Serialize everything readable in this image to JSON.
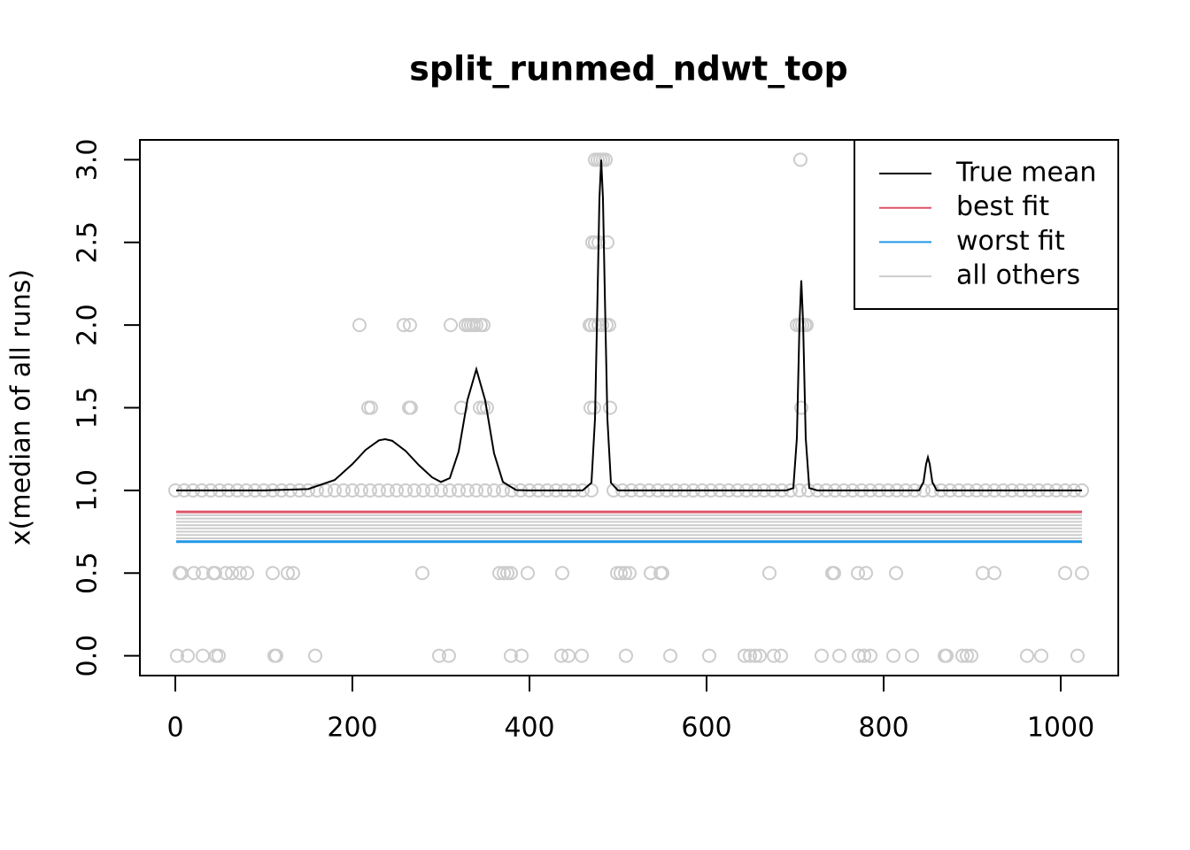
{
  "chart_data": {
    "type": "line",
    "title": "split_runmed_ndwt_top",
    "ylabel": "x(median of all runs)",
    "xlim": [
      -40,
      1065
    ],
    "ylim": [
      -0.12,
      3.12
    ],
    "xticks": [
      0,
      200,
      400,
      600,
      800,
      1000
    ],
    "yticks": [
      {
        "value": 0,
        "label": "0.0"
      },
      0.5,
      {
        "value": 1,
        "label": "1.0"
      },
      1.5,
      {
        "value": 2,
        "label": "2.0"
      },
      2.5,
      {
        "value": 3,
        "label": "3.0"
      }
    ],
    "legend": "topright",
    "points": {
      "color": "#cccccc",
      "groups": [
        {
          "y": 1,
          "x": [
            0,
            10,
            20,
            30,
            40,
            50,
            60,
            70,
            80,
            90,
            100,
            110,
            120,
            130,
            140,
            150,
            160,
            170,
            180,
            190,
            200,
            210,
            220,
            230,
            240,
            250,
            260,
            270,
            280,
            290,
            300,
            310,
            320,
            330,
            340,
            350,
            360,
            370,
            380,
            390,
            400,
            410,
            420,
            430,
            440,
            450,
            460,
            470,
            495,
            505,
            515,
            525,
            535,
            545,
            555,
            565,
            575,
            585,
            595,
            605,
            615,
            625,
            635,
            645,
            655,
            665,
            675,
            685,
            695,
            705,
            715,
            725,
            735,
            745,
            755,
            765,
            775,
            785,
            795,
            805,
            815,
            825,
            835,
            845,
            855,
            865,
            875,
            885,
            895,
            905,
            915,
            925,
            935,
            945,
            955,
            965,
            975,
            985,
            995,
            1005,
            1015,
            1024
          ]
        },
        {
          "y": 2,
          "x": [
            208,
            258,
            265,
            311,
            328,
            331,
            334,
            337,
            340,
            345,
            348,
            468,
            470,
            474,
            478,
            482,
            487,
            490,
            702,
            705,
            708,
            711,
            713
          ]
        },
        {
          "y": 1.5,
          "x": [
            218,
            221,
            264,
            266,
            323,
            344,
            348,
            352,
            469,
            473,
            491,
            707
          ]
        },
        {
          "y": 2.5,
          "x": [
            471,
            474,
            478,
            488
          ]
        },
        {
          "y": 3,
          "x": [
            474,
            477,
            480,
            483,
            486,
            706
          ]
        },
        {
          "y": 0.5,
          "x": [
            5,
            7,
            21,
            31,
            43,
            45,
            57,
            64,
            73,
            81,
            110,
            127,
            133,
            279,
            366,
            371,
            375,
            379,
            398,
            437,
            499,
            503,
            508,
            513,
            537,
            548,
            550,
            671,
            742,
            744,
            771,
            780,
            814,
            912,
            925,
            1005,
            1024
          ]
        },
        {
          "y": 0,
          "x": [
            2,
            14,
            31,
            46,
            49,
            112,
            114,
            158,
            298,
            309,
            379,
            391,
            436,
            444,
            459,
            509,
            559,
            603,
            643,
            649,
            655,
            660,
            676,
            684,
            730,
            750,
            772,
            778,
            785,
            811,
            832,
            869,
            871,
            889,
            894,
            899,
            962,
            978,
            1019
          ]
        }
      ]
    },
    "series": [
      {
        "name": "True mean",
        "color": "#000000",
        "x": [
          1,
          100,
          150,
          180,
          200,
          215,
          230,
          237,
          245,
          260,
          275,
          290,
          300,
          310,
          320,
          330,
          340,
          350,
          360,
          370,
          385,
          400,
          460,
          470,
          474,
          477,
          479,
          481,
          483,
          485,
          488,
          492,
          500,
          690,
          698,
          702,
          705,
          707,
          709,
          712,
          716,
          725,
          840,
          845,
          848,
          850,
          852,
          855,
          860,
          1024
        ],
        "values": [
          1,
          1,
          1.008,
          1.063,
          1.159,
          1.245,
          1.303,
          1.31,
          1.3,
          1.239,
          1.153,
          1.079,
          1.051,
          1.074,
          1.235,
          1.548,
          1.733,
          1.544,
          1.224,
          1.051,
          1.002,
          1,
          1,
          1.046,
          1.433,
          2.213,
          2.765,
          3,
          2.765,
          2.213,
          1.433,
          1.046,
          1,
          1,
          1.014,
          1.316,
          2.017,
          2.27,
          2.017,
          1.316,
          1.014,
          1,
          1,
          1.05,
          1.16,
          1.2,
          1.16,
          1.05,
          1,
          1
        ]
      },
      {
        "name": "best fit",
        "color": "#DF536B",
        "x": [
          1,
          1024
        ],
        "values": [
          0.87,
          0.87
        ]
      },
      {
        "name": "worst fit",
        "color": "#2297E6",
        "x": [
          1,
          1024
        ],
        "values": [
          0.69,
          0.69
        ]
      },
      {
        "name": "all others",
        "color": "#cccccc",
        "x": [
          1,
          1024
        ],
        "levels": [
          0.71,
          0.73,
          0.75,
          0.77,
          0.79,
          0.81,
          0.83,
          0.85
        ]
      }
    ]
  }
}
